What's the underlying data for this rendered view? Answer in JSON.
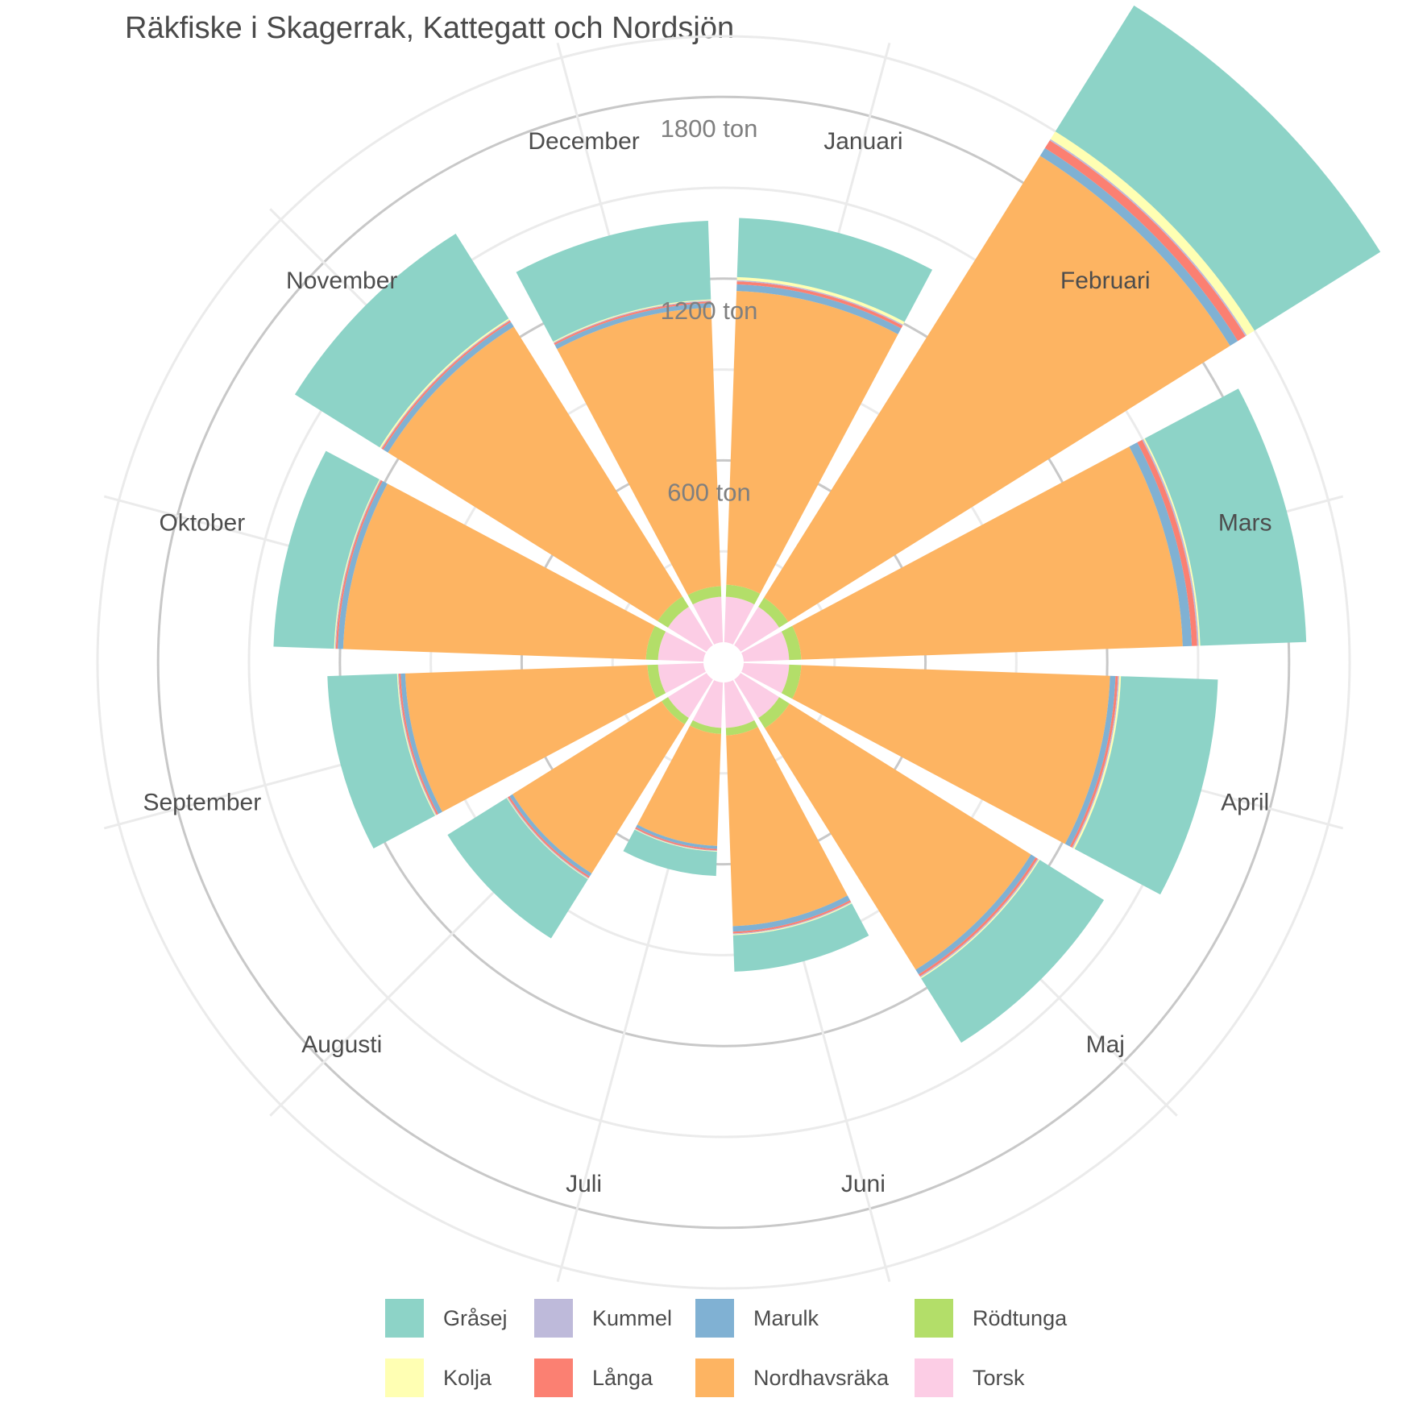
{
  "chart_data": {
    "type": "stacked-polar-bar",
    "title": "Räkfiske i Skagerrak, Kattegatt och Nordsjön",
    "categories": [
      "Januari",
      "Februari",
      "Mars",
      "April",
      "Maj",
      "Juni",
      "Juli",
      "Augusti",
      "September",
      "Oktober",
      "November",
      "December"
    ],
    "ring_labels": [
      {
        "value": 600,
        "label": "600 ton"
      },
      {
        "value": 1200,
        "label": "1200 ton"
      },
      {
        "value": 1800,
        "label": "1800 ton"
      }
    ],
    "rmax": 2050,
    "grid": true,
    "legend_position": "bottom",
    "series": [
      {
        "name": "Torsk",
        "color": "#FCCDE5",
        "values": [
          150,
          150,
          150,
          150,
          150,
          150,
          150,
          150,
          150,
          150,
          150,
          150
        ]
      },
      {
        "name": "Rödtunga",
        "color": "#B3DE69",
        "values": [
          40,
          35,
          40,
          40,
          40,
          25,
          20,
          25,
          35,
          40,
          40,
          35
        ]
      },
      {
        "name": "Nordhavsräka",
        "color": "#FDB462",
        "values": [
          970,
          1720,
          1260,
          1020,
          940,
          630,
          370,
          580,
          800,
          1000,
          1050,
          920
        ]
      },
      {
        "name": "Marulk",
        "color": "#80B1D3",
        "values": [
          22,
          30,
          30,
          18,
          18,
          18,
          10,
          12,
          15,
          18,
          18,
          15
        ]
      },
      {
        "name": "Långa",
        "color": "#FB8072",
        "values": [
          10,
          30,
          18,
          8,
          8,
          6,
          5,
          6,
          6,
          6,
          6,
          6
        ]
      },
      {
        "name": "Kummel",
        "color": "#BEBADA",
        "values": [
          4,
          5,
          5,
          4,
          4,
          3,
          2,
          3,
          3,
          3,
          3,
          3
        ]
      },
      {
        "name": "Kolja",
        "color": "#FFFFB3",
        "values": [
          10,
          30,
          5,
          6,
          4,
          3,
          2,
          2,
          3,
          3,
          5,
          3
        ]
      },
      {
        "name": "Gråsej",
        "color": "#8DD3C7",
        "values": [
          195,
          490,
          350,
          320,
          250,
          120,
          80,
          230,
          230,
          200,
          330,
          260
        ]
      }
    ]
  },
  "legend": {
    "items": [
      {
        "name": "Gråsej",
        "color": "#8DD3C7"
      },
      {
        "name": "Kolja",
        "color": "#FFFFB3"
      },
      {
        "name": "Kummel",
        "color": "#BEBADA"
      },
      {
        "name": "Långa",
        "color": "#FB8072"
      },
      {
        "name": "Marulk",
        "color": "#80B1D3"
      },
      {
        "name": "Nordhavsräka",
        "color": "#FDB462"
      },
      {
        "name": "Rödtunga",
        "color": "#B3DE69"
      },
      {
        "name": "Torsk",
        "color": "#FCCDE5"
      }
    ]
  },
  "colors": {
    "grid_major": "#c8c8c8",
    "grid_minor": "#ebebeb",
    "text": "#4d4d4d"
  }
}
